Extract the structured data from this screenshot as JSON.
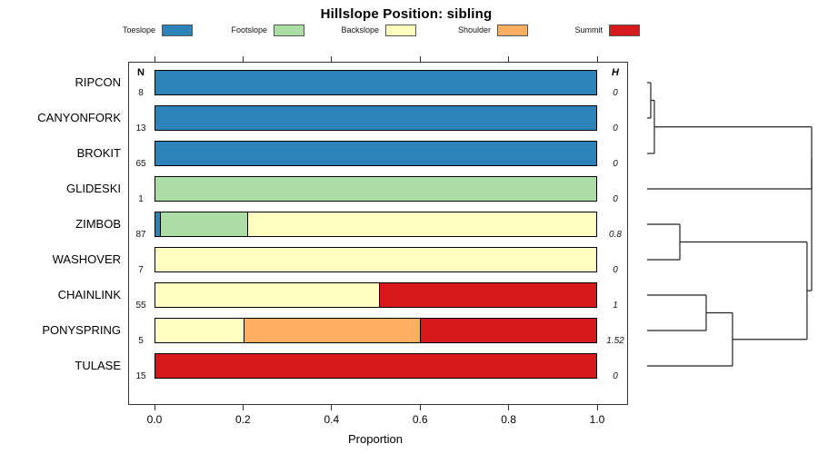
{
  "title": "Hillslope Position: sibling",
  "xlabel": "Proportion",
  "columns": {
    "n_header": "N",
    "h_header": "H"
  },
  "x_ticks": [
    "0.0",
    "0.2",
    "0.4",
    "0.6",
    "0.8",
    "1.0"
  ],
  "chart_data": {
    "type": "bar",
    "subtype": "horizontal-stacked-proportion",
    "title": "Hillslope Position: sibling",
    "xlabel": "Proportion",
    "xlim": [
      0,
      1
    ],
    "x_tick_values": [
      0.0,
      0.2,
      0.4,
      0.6,
      0.8,
      1.0
    ],
    "grid": false,
    "legend_position": "top",
    "categories": [
      "Toeslope",
      "Footslope",
      "Backslope",
      "Shoulder",
      "Summit"
    ],
    "category_colors": {
      "Toeslope": "#2B83BA",
      "Footslope": "#ABDDA4",
      "Backslope": "#FFFFBF",
      "Shoulder": "#FDAE61",
      "Summit": "#D7191C"
    },
    "rows": [
      {
        "label": "RIPCON",
        "n": 8,
        "h": "0",
        "segments": [
          {
            "category": "Toeslope",
            "value": 1.0
          }
        ]
      },
      {
        "label": "CANYONFORK",
        "n": 13,
        "h": "0",
        "segments": [
          {
            "category": "Toeslope",
            "value": 1.0
          }
        ]
      },
      {
        "label": "BROKIT",
        "n": 65,
        "h": "0",
        "segments": [
          {
            "category": "Toeslope",
            "value": 1.0
          }
        ]
      },
      {
        "label": "GLIDESKI",
        "n": 1,
        "h": "0",
        "segments": [
          {
            "category": "Footslope",
            "value": 1.0
          }
        ]
      },
      {
        "label": "ZIMBOB",
        "n": 87,
        "h": "0.8",
        "segments": [
          {
            "category": "Toeslope",
            "value": 0.011
          },
          {
            "category": "Footslope",
            "value": 0.196
          },
          {
            "category": "Backslope",
            "value": 0.793
          }
        ]
      },
      {
        "label": "WASHOVER",
        "n": 7,
        "h": "0",
        "segments": [
          {
            "category": "Backslope",
            "value": 1.0
          }
        ]
      },
      {
        "label": "CHAINLINK",
        "n": 55,
        "h": "1",
        "segments": [
          {
            "category": "Backslope",
            "value": 0.509
          },
          {
            "category": "Summit",
            "value": 0.491
          }
        ]
      },
      {
        "label": "PONYSPRING",
        "n": 5,
        "h": "1.52",
        "segments": [
          {
            "category": "Backslope",
            "value": 0.2
          },
          {
            "category": "Shoulder",
            "value": 0.4
          },
          {
            "category": "Summit",
            "value": 0.4
          }
        ]
      },
      {
        "label": "TULASE",
        "n": 15,
        "h": "0",
        "segments": [
          {
            "category": "Summit",
            "value": 1.0
          }
        ]
      }
    ],
    "dendrogram": {
      "orientation": "right",
      "leaf_order": [
        "RIPCON",
        "CANYONFORK",
        "BROKIT",
        "GLIDESKI",
        "ZIMBOB",
        "WASHOVER",
        "CHAINLINK",
        "PONYSPRING",
        "TULASE"
      ],
      "merges": [
        {
          "id": "m1",
          "a": "RIPCON",
          "b": "CANYONFORK",
          "height": 0.022
        },
        {
          "id": "m2",
          "a": "m1",
          "b": "BROKIT",
          "height": 0.044
        },
        {
          "id": "m3",
          "a": "ZIMBOB",
          "b": "WASHOVER",
          "height": 0.199
        },
        {
          "id": "m4",
          "a": "CHAINLINK",
          "b": "PONYSPRING",
          "height": 0.359
        },
        {
          "id": "m5",
          "a": "m4",
          "b": "TULASE",
          "height": 0.519
        },
        {
          "id": "m6",
          "a": "m3",
          "b": "m5",
          "height": 0.972
        },
        {
          "id": "m7",
          "a": "m2",
          "b": "GLIDESKI",
          "height": 1.0
        },
        {
          "id": "m8",
          "a": "m7",
          "b": "m6",
          "height": 1.0
        }
      ]
    }
  }
}
